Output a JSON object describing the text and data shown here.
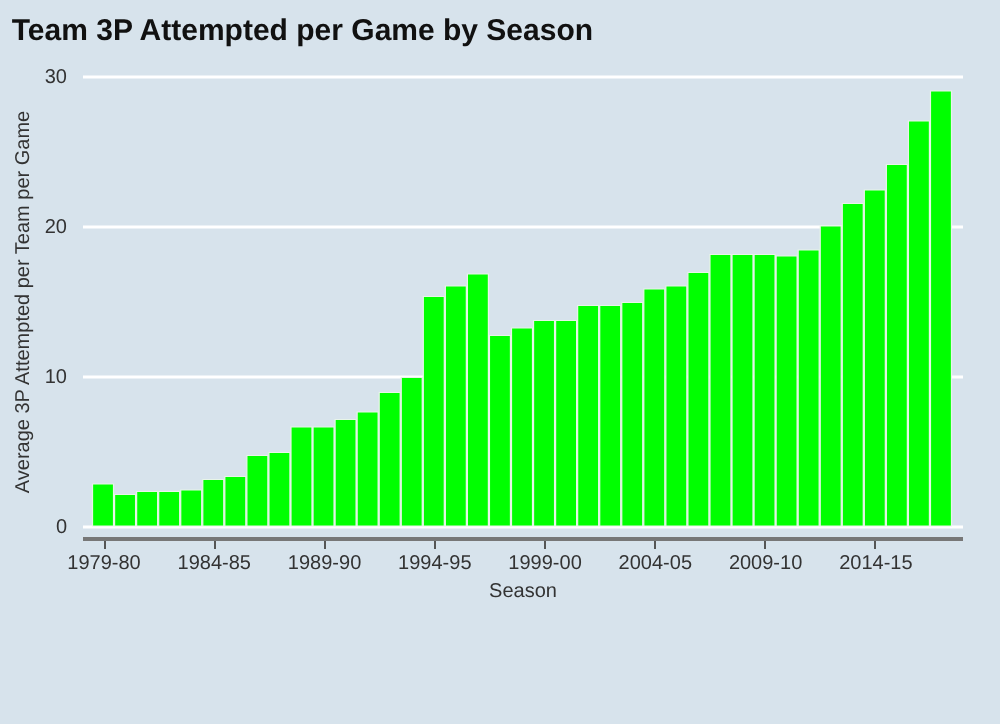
{
  "chart_data": {
    "type": "bar",
    "title": "Team 3P Attempted per Game by Season",
    "xlabel": "Season",
    "ylabel": "Average 3P Attempted per Team per Game",
    "categories": [
      "1979-80",
      null,
      null,
      null,
      null,
      "1984-85",
      null,
      null,
      null,
      null,
      "1989-90",
      null,
      null,
      null,
      null,
      "1994-95",
      null,
      null,
      null,
      null,
      "1999-00",
      null,
      null,
      null,
      null,
      "2004-05",
      null,
      null,
      null,
      null,
      "2009-10",
      null,
      null,
      null,
      null,
      "2014-15",
      null,
      null,
      null
    ],
    "values": [
      2.8,
      2.1,
      2.3,
      2.3,
      2.4,
      3.1,
      3.3,
      4.7,
      4.9,
      6.6,
      6.6,
      7.1,
      7.6,
      8.9,
      9.9,
      15.3,
      16.0,
      16.8,
      12.7,
      13.2,
      13.7,
      13.7,
      14.7,
      14.7,
      14.9,
      15.8,
      16.0,
      16.9,
      18.1,
      18.1,
      18.1,
      18.0,
      18.4,
      20.0,
      21.5,
      22.4,
      24.1,
      27.0,
      29.0
    ],
    "color": "#00ff00",
    "ylim": [
      0,
      30
    ],
    "yticks": [
      0,
      10,
      20,
      30
    ],
    "grid": "y"
  }
}
